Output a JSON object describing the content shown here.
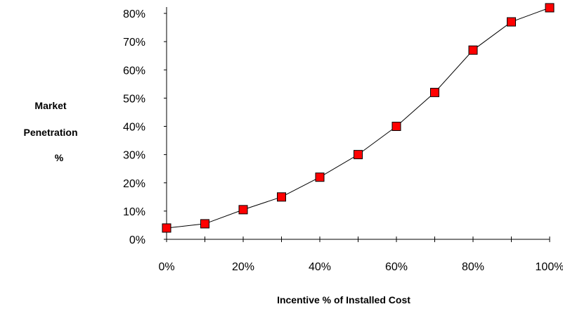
{
  "chart_data": {
    "type": "line",
    "title": "",
    "xlabel": "Incentive % of Installed Cost",
    "ylabel_lines": [
      "Market",
      "Penetration",
      "%"
    ],
    "x": [
      0,
      10,
      20,
      30,
      40,
      50,
      60,
      70,
      80,
      90,
      100
    ],
    "values": [
      4,
      5.5,
      10.5,
      15,
      22,
      30,
      40,
      52,
      67,
      77,
      82
    ],
    "xlim": [
      0,
      100
    ],
    "ylim": [
      0,
      82
    ],
    "x_tick_labels": [
      "0%",
      "20%",
      "40%",
      "60%",
      "80%",
      "100%"
    ],
    "x_tick_values": [
      0,
      20,
      40,
      60,
      80,
      100
    ],
    "y_tick_labels": [
      "0%",
      "10%",
      "20%",
      "30%",
      "40%",
      "50%",
      "60%",
      "70%",
      "80%"
    ],
    "y_tick_values": [
      0,
      10,
      20,
      30,
      40,
      50,
      60,
      70,
      80
    ],
    "grid": false,
    "legend": "none",
    "marker": "square",
    "colors": {
      "marker_fill": "#ff0000",
      "marker_stroke": "#000000",
      "line": "#000000"
    }
  }
}
